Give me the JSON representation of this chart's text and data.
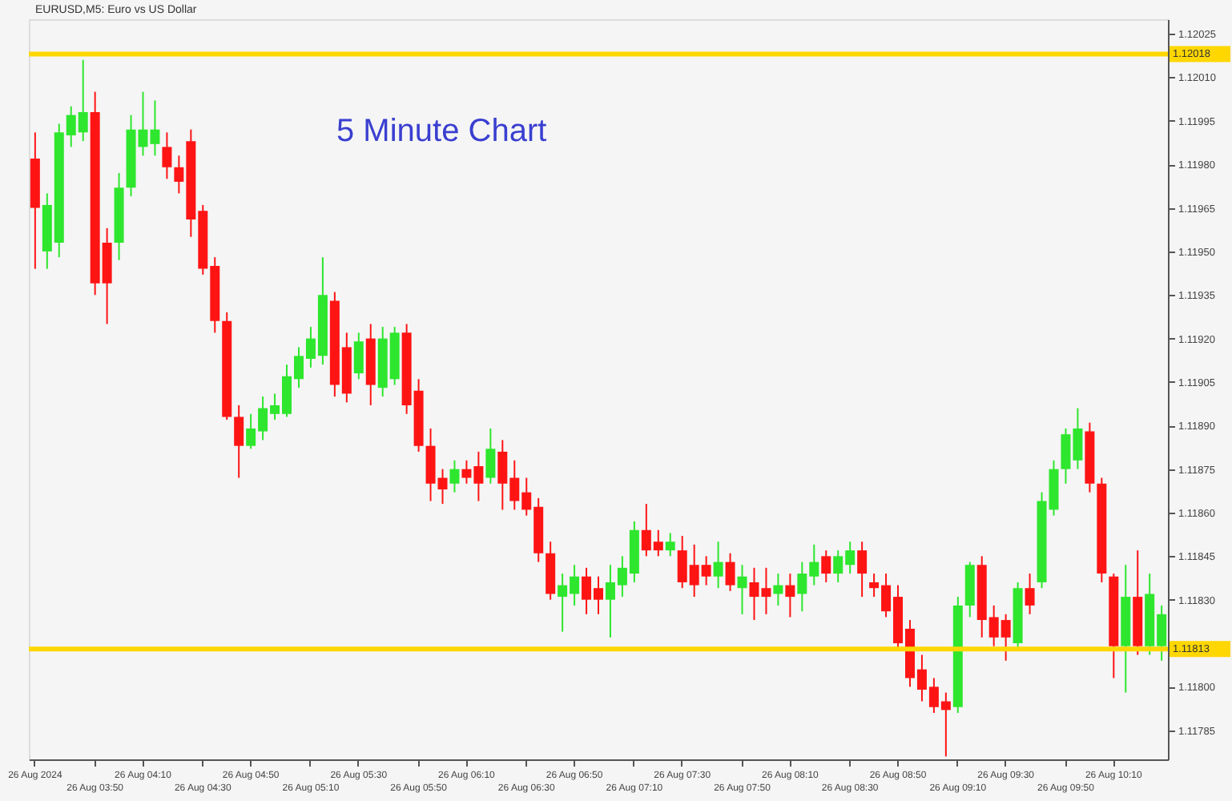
{
  "chart_data": {
    "type": "candlestick",
    "title": "5 Minute Chart",
    "subtitle": "EURUSD,M5:  Euro vs US Dollar",
    "categories": [
      "26 Aug 2024",
      null,
      null,
      null,
      null,
      "26 Aug 03:50",
      null,
      null,
      null,
      "26 Aug 04:10",
      null,
      null,
      null,
      null,
      "26 Aug 04:30",
      null,
      null,
      null,
      "26 Aug 04:50",
      null,
      null,
      null,
      null,
      "26 Aug 05:10",
      null,
      null,
      null,
      "26 Aug 05:30",
      null,
      null,
      null,
      null,
      "26 Aug 05:50",
      null,
      null,
      null,
      "26 Aug 06:10",
      null,
      null,
      null,
      null,
      "26 Aug 06:30",
      null,
      null,
      null,
      "26 Aug 06:50",
      null,
      null,
      null,
      null,
      "26 Aug 07:10",
      null,
      null,
      null,
      "26 Aug 07:30",
      null,
      null,
      null,
      null,
      "26 Aug 07:50",
      null,
      null,
      null,
      "26 Aug 08:10",
      null,
      null,
      null,
      null,
      "26 Aug 08:30",
      null,
      null,
      null,
      "26 Aug 08:50",
      null,
      null,
      null,
      null,
      "26 Aug 09:10",
      null,
      null,
      null,
      "26 Aug 09:30",
      null,
      null,
      null,
      null,
      "26 Aug 09:50",
      null,
      null,
      null,
      "26 Aug 10:10",
      null,
      null,
      null,
      null
    ],
    "ohlc": [
      [
        1.11982,
        1.11991,
        1.11944,
        1.11965
      ],
      [
        1.1195,
        1.1197,
        1.11944,
        1.11966
      ],
      [
        1.11953,
        1.11994,
        1.11948,
        1.11991
      ],
      [
        1.1199,
        1.12,
        1.11986,
        1.11997
      ],
      [
        1.11991,
        1.12016,
        1.11988,
        1.11998
      ],
      [
        1.11998,
        1.12005,
        1.11935,
        1.11939
      ],
      [
        1.11953,
        1.11958,
        1.11925,
        1.11939
      ],
      [
        1.11953,
        1.11977,
        1.11947,
        1.11972
      ],
      [
        1.11972,
        1.11997,
        1.11969,
        1.11992
      ],
      [
        1.11986,
        1.12005,
        1.11983,
        1.11992
      ],
      [
        1.11987,
        1.12002,
        1.11983,
        1.11992
      ],
      [
        1.11986,
        1.11991,
        1.11975,
        1.11979
      ],
      [
        1.11979,
        1.11983,
        1.1197,
        1.11974
      ],
      [
        1.11988,
        1.11992,
        1.11955,
        1.11961
      ],
      [
        1.11964,
        1.11966,
        1.11942,
        1.11944
      ],
      [
        1.11945,
        1.11948,
        1.11922,
        1.11926
      ],
      [
        1.11926,
        1.11929,
        1.11892,
        1.11893
      ],
      [
        1.11893,
        1.11897,
        1.11872,
        1.11883
      ],
      [
        1.11883,
        1.11894,
        1.11882,
        1.11889
      ],
      [
        1.11888,
        1.119,
        1.11885,
        1.11896
      ],
      [
        1.11894,
        1.11901,
        1.11892,
        1.11897
      ],
      [
        1.11894,
        1.11911,
        1.11893,
        1.11907
      ],
      [
        1.11906,
        1.11917,
        1.11903,
        1.11914
      ],
      [
        1.11913,
        1.11924,
        1.1191,
        1.1192
      ],
      [
        1.11914,
        1.11948,
        1.11911,
        1.11935
      ],
      [
        1.11933,
        1.11936,
        1.119,
        1.11904
      ],
      [
        1.11917,
        1.11922,
        1.11898,
        1.11901
      ],
      [
        1.11908,
        1.11922,
        1.11906,
        1.11919
      ],
      [
        1.1192,
        1.11925,
        1.11897,
        1.11904
      ],
      [
        1.11903,
        1.11924,
        1.119,
        1.1192
      ],
      [
        1.11906,
        1.11924,
        1.11904,
        1.11922
      ],
      [
        1.11922,
        1.11925,
        1.11894,
        1.11897
      ],
      [
        1.11902,
        1.11906,
        1.11881,
        1.11883
      ],
      [
        1.11883,
        1.11889,
        1.11864,
        1.1187
      ],
      [
        1.11872,
        1.11875,
        1.11863,
        1.11868
      ],
      [
        1.1187,
        1.11878,
        1.11867,
        1.11875
      ],
      [
        1.11875,
        1.11878,
        1.1187,
        1.11872
      ],
      [
        1.11876,
        1.11881,
        1.11864,
        1.1187
      ],
      [
        1.11872,
        1.11889,
        1.1187,
        1.11882
      ],
      [
        1.11881,
        1.11885,
        1.11861,
        1.1187
      ],
      [
        1.11872,
        1.11878,
        1.11861,
        1.11864
      ],
      [
        1.11867,
        1.11872,
        1.11859,
        1.11861
      ],
      [
        1.11862,
        1.11865,
        1.11843,
        1.11846
      ],
      [
        1.11846,
        1.1185,
        1.1183,
        1.11832
      ],
      [
        1.11831,
        1.11839,
        1.11819,
        1.11835
      ],
      [
        1.11832,
        1.11842,
        1.11828,
        1.11838
      ],
      [
        1.11838,
        1.11841,
        1.11825,
        1.1183
      ],
      [
        1.11834,
        1.11838,
        1.11825,
        1.1183
      ],
      [
        1.1183,
        1.11842,
        1.11817,
        1.11836
      ],
      [
        1.11835,
        1.11845,
        1.11831,
        1.11841
      ],
      [
        1.11839,
        1.11857,
        1.11836,
        1.11854
      ],
      [
        1.11854,
        1.11863,
        1.11845,
        1.11847
      ],
      [
        1.1185,
        1.11854,
        1.11845,
        1.11847
      ],
      [
        1.11847,
        1.11853,
        1.11845,
        1.1185
      ],
      [
        1.11847,
        1.11852,
        1.11834,
        1.11836
      ],
      [
        1.11842,
        1.11849,
        1.11831,
        1.11835
      ],
      [
        1.11842,
        1.11845,
        1.11835,
        1.11838
      ],
      [
        1.11838,
        1.1185,
        1.11834,
        1.11843
      ],
      [
        1.11843,
        1.11846,
        1.11833,
        1.11835
      ],
      [
        1.11834,
        1.11842,
        1.11825,
        1.11838
      ],
      [
        1.11836,
        1.11841,
        1.11823,
        1.11831
      ],
      [
        1.11834,
        1.11841,
        1.11825,
        1.11831
      ],
      [
        1.11832,
        1.11839,
        1.11828,
        1.11835
      ],
      [
        1.11835,
        1.11839,
        1.11824,
        1.11831
      ],
      [
        1.11832,
        1.11843,
        1.11826,
        1.11839
      ],
      [
        1.11838,
        1.11849,
        1.11835,
        1.11843
      ],
      [
        1.11845,
        1.11847,
        1.11836,
        1.11839
      ],
      [
        1.11839,
        1.11847,
        1.11836,
        1.11845
      ],
      [
        1.11842,
        1.1185,
        1.11839,
        1.11847
      ],
      [
        1.11847,
        1.1185,
        1.11831,
        1.11839
      ],
      [
        1.11836,
        1.11839,
        1.11831,
        1.11834
      ],
      [
        1.11835,
        1.11839,
        1.11824,
        1.11826
      ],
      [
        1.11831,
        1.11835,
        1.11813,
        1.11815
      ],
      [
        1.1182,
        1.11823,
        1.118,
        1.11803
      ],
      [
        1.11806,
        1.11811,
        1.11795,
        1.11799
      ],
      [
        1.118,
        1.11803,
        1.11791,
        1.11793
      ],
      [
        1.11795,
        1.11798,
        1.11776,
        1.11792
      ],
      [
        1.11793,
        1.11831,
        1.11791,
        1.11828
      ],
      [
        1.11828,
        1.11843,
        1.11824,
        1.11842
      ],
      [
        1.11842,
        1.11845,
        1.11817,
        1.11823
      ],
      [
        1.11824,
        1.11828,
        1.11814,
        1.11817
      ],
      [
        1.11823,
        1.11825,
        1.11809,
        1.11817
      ],
      [
        1.11815,
        1.11836,
        1.11813,
        1.11834
      ],
      [
        1.11834,
        1.11839,
        1.11825,
        1.11828
      ],
      [
        1.11836,
        1.11867,
        1.11834,
        1.11864
      ],
      [
        1.11861,
        1.11878,
        1.11859,
        1.11875
      ],
      [
        1.11875,
        1.11889,
        1.1187,
        1.11887
      ],
      [
        1.11878,
        1.11896,
        1.11875,
        1.11889
      ],
      [
        1.11888,
        1.11891,
        1.11867,
        1.1187
      ],
      [
        1.1187,
        1.11872,
        1.11836,
        1.11839
      ],
      [
        1.11838,
        1.11839,
        1.11803,
        1.11814
      ],
      [
        1.11814,
        1.11842,
        1.11798,
        1.11831
      ],
      [
        1.11831,
        1.11847,
        1.11811,
        1.11814
      ],
      [
        1.11814,
        1.11839,
        1.11811,
        1.11832
      ],
      [
        1.11814,
        1.11828,
        1.11809,
        1.11825
      ]
    ],
    "colors": [
      "#ff1414",
      "#2ee62e",
      "#2ee62e",
      "#2ee62e",
      "#2ee62e",
      "#ff1414",
      "#ff1414",
      "#2ee62e",
      "#2ee62e",
      "#2ee62e",
      "#2ee62e",
      "#ff1414",
      "#ff1414",
      "#ff1414",
      "#ff1414",
      "#ff1414",
      "#ff1414",
      "#ff1414",
      "#2ee62e",
      "#2ee62e",
      "#2ee62e",
      "#2ee62e",
      "#2ee62e",
      "#2ee62e",
      "#2ee62e",
      "#ff1414",
      "#ff1414",
      "#2ee62e",
      "#ff1414",
      "#2ee62e",
      "#2ee62e",
      "#ff1414",
      "#ff1414",
      "#ff1414",
      "#ff1414",
      "#2ee62e",
      "#ff1414",
      "#ff1414",
      "#2ee62e",
      "#ff1414",
      "#ff1414",
      "#ff1414",
      "#ff1414",
      "#ff1414",
      "#2ee62e",
      "#2ee62e",
      "#ff1414",
      "#ff1414",
      "#2ee62e",
      "#2ee62e",
      "#2ee62e",
      "#ff1414",
      "#ff1414",
      "#2ee62e",
      "#ff1414",
      "#ff1414",
      "#ff1414",
      "#2ee62e",
      "#ff1414",
      "#2ee62e",
      "#ff1414",
      "#ff1414",
      "#2ee62e",
      "#ff1414",
      "#2ee62e",
      "#2ee62e",
      "#ff1414",
      "#2ee62e",
      "#2ee62e",
      "#ff1414",
      "#ff1414",
      "#ff1414",
      "#ff1414",
      "#ff1414",
      "#ff1414",
      "#ff1414",
      "#ff1414",
      "#2ee62e",
      "#2ee62e",
      "#ff1414",
      "#ff1414",
      "#ff1414",
      "#2ee62e",
      "#ff1414",
      "#2ee62e",
      "#2ee62e",
      "#2ee62e",
      "#2ee62e",
      "#ff1414",
      "#ff1414",
      "#ff1414",
      "#2ee62e",
      "#ff1414",
      "#2ee62e",
      "#2ee62e"
    ],
    "ylim": [
      1.11775,
      1.1203
    ],
    "yticks": [
      1.12025,
      {
        "value": 1.1201,
        "label": "1.12010"
      },
      1.11995,
      {
        "value": 1.1198,
        "label": "1.11980"
      },
      1.11965,
      {
        "value": 1.1195,
        "label": "1.11950"
      },
      1.11935,
      {
        "value": 1.1192,
        "label": "1.11920"
      },
      1.11905,
      {
        "value": 1.1189,
        "label": "1.11890"
      },
      1.11875,
      {
        "value": 1.1186,
        "label": "1.11860"
      },
      1.11845,
      {
        "value": 1.1183,
        "label": "1.11830"
      },
      {
        "value": 1.118,
        "label": "1.11800"
      },
      1.11785
    ],
    "ref_lines": [
      {
        "axis": "y",
        "value": 1.12018,
        "label": "1.12018",
        "color": "#ffd700"
      },
      {
        "axis": "y",
        "value": 1.11813,
        "label": "1.11813",
        "color": "#ffd700"
      }
    ],
    "grid": false
  }
}
